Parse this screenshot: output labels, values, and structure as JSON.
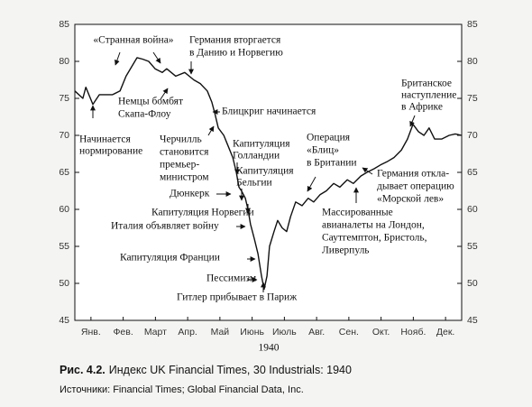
{
  "chart_data": {
    "type": "line",
    "caption": {
      "label": "Рис. 4.2.",
      "text": "Индекс UK Financial Times, 30 Industrials: 1940"
    },
    "sources": "Источники: Financial Times; Global Financial Data, Inc.",
    "xlabel": "1940",
    "color": "#111111",
    "xlim": [
      0,
      12
    ],
    "xticks": [
      {
        "value": 0.5,
        "label": "Янв."
      },
      {
        "value": 1.5,
        "label": "Фев."
      },
      {
        "value": 2.5,
        "label": "Март"
      },
      {
        "value": 3.5,
        "label": "Апр."
      },
      {
        "value": 4.5,
        "label": "Май"
      },
      {
        "value": 5.5,
        "label": "Июнь"
      },
      {
        "value": 6.5,
        "label": "Июль"
      },
      {
        "value": 7.5,
        "label": "Авг."
      },
      {
        "value": 8.5,
        "label": "Сен."
      },
      {
        "value": 9.5,
        "label": "Окт."
      },
      {
        "value": 10.5,
        "label": "Нояб."
      },
      {
        "value": 11.5,
        "label": "Дек."
      }
    ],
    "ylim": [
      45,
      85
    ],
    "yticks": [
      45,
      50,
      55,
      60,
      65,
      70,
      75,
      80,
      85
    ],
    "y2lim": [
      45,
      85
    ],
    "y2ticks": [
      45,
      50,
      55,
      60,
      65,
      70,
      75,
      80,
      85
    ],
    "grid": false,
    "x": [
      0,
      0.25,
      0.34,
      0.56,
      0.76,
      1.17,
      1.4,
      1.59,
      1.93,
      2.1,
      2.29,
      2.49,
      2.71,
      2.85,
      3.13,
      3.41,
      3.69,
      3.89,
      4.11,
      4.25,
      4.34,
      4.45,
      4.62,
      4.76,
      4.9,
      5.01,
      5.09,
      5.17,
      5.29,
      5.37,
      5.45,
      5.57,
      5.68,
      5.79,
      5.87,
      5.96,
      6.04,
      6.18,
      6.29,
      6.43,
      6.57,
      6.69,
      6.85,
      7.05,
      7.24,
      7.41,
      7.61,
      7.8,
      8.03,
      8.22,
      8.45,
      8.64,
      8.87,
      9.06,
      9.29,
      9.48,
      9.71,
      9.9,
      10.13,
      10.32,
      10.49,
      10.66,
      10.83,
      10.99,
      11.16,
      11.38,
      11.61,
      11.8,
      12
    ],
    "values": [
      76,
      75,
      76.5,
      74.2,
      75.5,
      75.5,
      76,
      78,
      80.5,
      80.3,
      80,
      79,
      78.5,
      79,
      78,
      78.5,
      77.5,
      77,
      76,
      74.5,
      73,
      71,
      70,
      68.5,
      67,
      65,
      63,
      62.5,
      61.5,
      60,
      58,
      56,
      54,
      51,
      49.2,
      51,
      55,
      57,
      58.5,
      57.5,
      57,
      59,
      61,
      60.5,
      61.5,
      61,
      62,
      62.5,
      63.5,
      63,
      64,
      63.5,
      64.5,
      65,
      65.5,
      66,
      66.5,
      67,
      68,
      69.5,
      71.5,
      70.5,
      70,
      71,
      69.5,
      69.5,
      70,
      70.2,
      70
    ],
    "annotations": [
      [
        "«Странная война»"
      ],
      [
        "Германия вторгается",
        "в Данию и Норвегию"
      ],
      [
        "Немцы бомбят",
        "Скапа-Флоу"
      ],
      [
        "Начинается",
        "нормирование"
      ],
      [
        "Блицкриг начинается"
      ],
      [
        "Черчилль",
        "становится",
        "премьер-",
        "министром"
      ],
      [
        "Капитуляция",
        "Голландии"
      ],
      [
        "Капитуляция",
        "Бельгии"
      ],
      [
        "Дюнкерк"
      ],
      [
        "Капитуляция Норвегии"
      ],
      [
        "Италия объявляет войну"
      ],
      [
        "Капитуляция Франции"
      ],
      [
        "Пессимизм"
      ],
      [
        "Гитлер прибывает в Париж"
      ],
      [
        "Операция",
        "«Блиц»",
        "в Британии"
      ],
      [
        "Германия откла-",
        "дывает операцию",
        "«Морской лев»"
      ],
      [
        "Массированные",
        "авианалеты на Лондон,",
        "Саутгемптон, Бристоль,",
        "Ливерпуль"
      ],
      [
        "Британское",
        "наступление",
        "в Африке"
      ]
    ]
  }
}
